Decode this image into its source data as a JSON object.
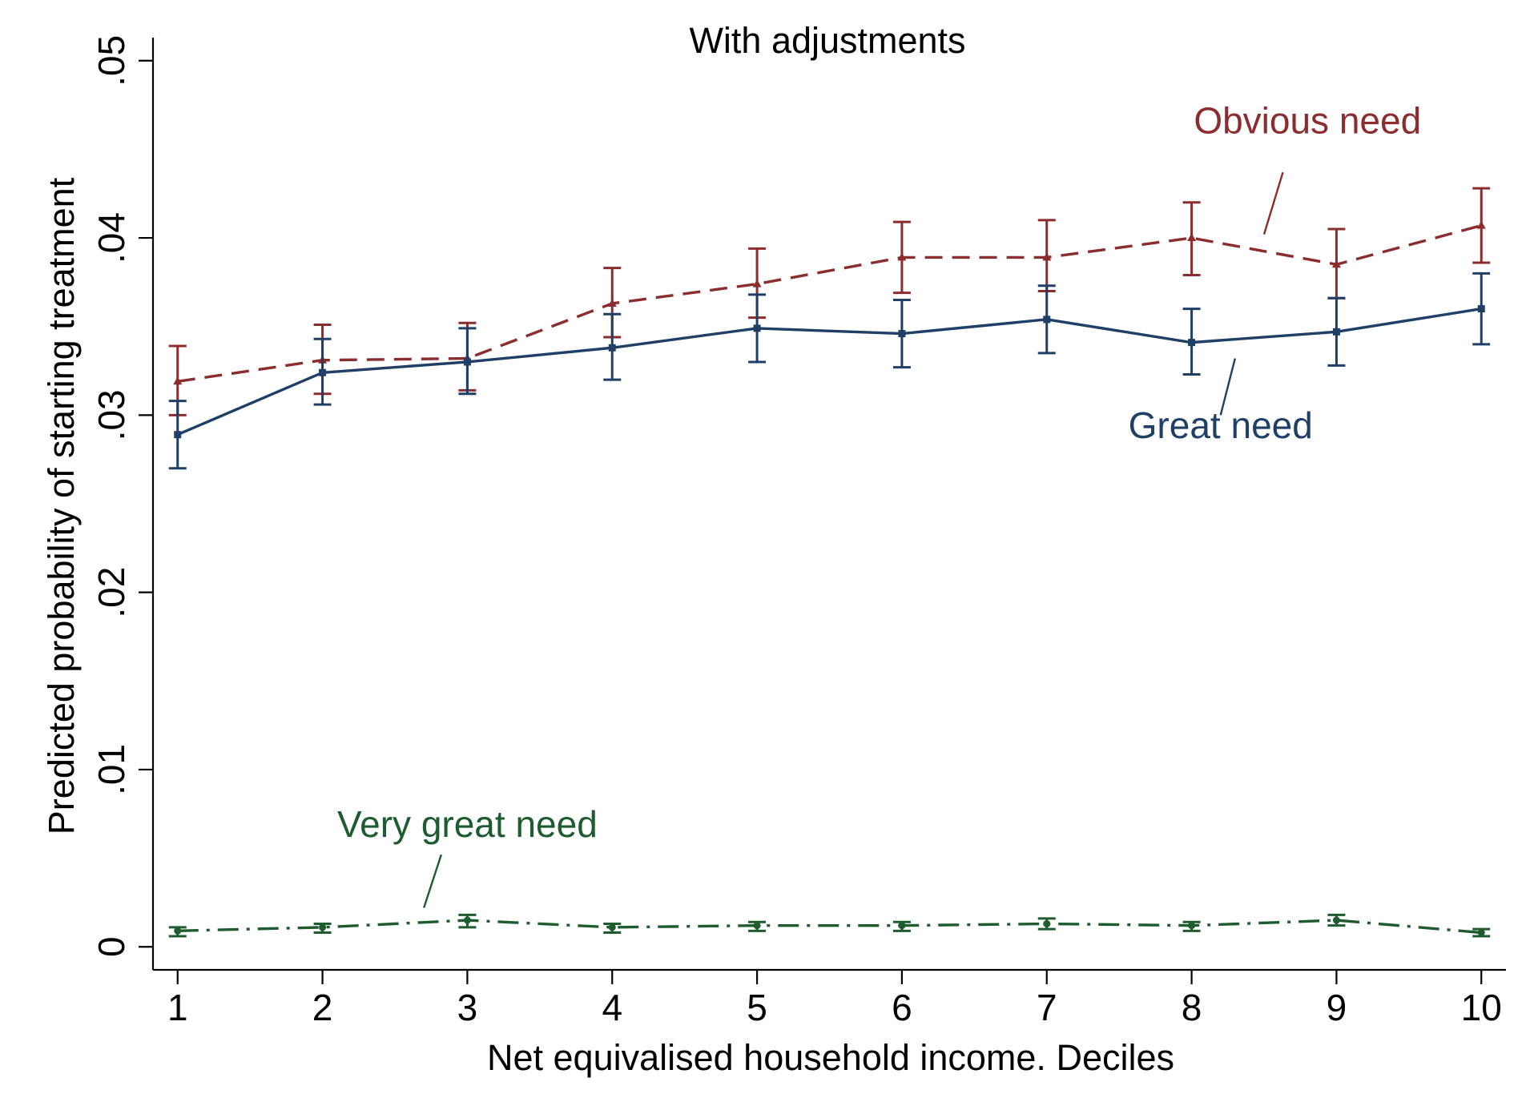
{
  "chart_data": {
    "type": "line",
    "title": "With adjustments",
    "xlabel": "Net equivalised household income. Deciles",
    "ylabel": "Predicted probability of starting treatment",
    "x": [
      1,
      2,
      3,
      4,
      5,
      6,
      7,
      8,
      9,
      10
    ],
    "xticks": [
      "1",
      "2",
      "3",
      "4",
      "5",
      "6",
      "7",
      "8",
      "9",
      "10"
    ],
    "yticks": [
      {
        "value": 0,
        "label": "0"
      },
      {
        "value": 0.01,
        "label": ".01"
      },
      {
        "value": 0.02,
        "label": ".02"
      },
      {
        "value": 0.03,
        "label": ".03"
      },
      {
        "value": 0.04,
        "label": ".04"
      },
      {
        "value": 0.05,
        "label": ".05"
      }
    ],
    "xlim": [
      0.83,
      10.17
    ],
    "ylim": [
      -0.0013,
      0.0513
    ],
    "grid": false,
    "legend": "none (series labelled directly on the plot)",
    "series": [
      {
        "name": "Obvious need",
        "color": "#8B2C2E",
        "line_style": "dashed",
        "marker": "triangle",
        "values": [
          0.0319,
          0.0331,
          0.0332,
          0.0363,
          0.0374,
          0.0389,
          0.0389,
          0.04,
          0.0385,
          0.0407
        ],
        "ci_low": [
          0.03,
          0.0312,
          0.0314,
          0.0344,
          0.0355,
          0.0369,
          0.037,
          0.0379,
          0.0366,
          0.0386
        ],
        "ci_high": [
          0.0339,
          0.0351,
          0.0352,
          0.0383,
          0.0394,
          0.0409,
          0.041,
          0.042,
          0.0405,
          0.0428
        ]
      },
      {
        "name": "Great need",
        "color": "#1F3F66",
        "line_style": "solid",
        "marker": "square",
        "values": [
          0.0289,
          0.0324,
          0.033,
          0.0338,
          0.0349,
          0.0346,
          0.0354,
          0.0341,
          0.0347,
          0.036
        ],
        "ci_low": [
          0.027,
          0.0306,
          0.0312,
          0.032,
          0.033,
          0.0327,
          0.0335,
          0.0323,
          0.0328,
          0.034
        ],
        "ci_high": [
          0.0308,
          0.0343,
          0.0349,
          0.0357,
          0.0368,
          0.0365,
          0.0373,
          0.036,
          0.0366,
          0.038
        ]
      },
      {
        "name": "Very great need",
        "color": "#1E5B2E",
        "line_style": "dash-dot",
        "marker": "circle",
        "values": [
          0.0009,
          0.0011,
          0.0015,
          0.0011,
          0.0012,
          0.0012,
          0.0013,
          0.0012,
          0.0015,
          0.0008
        ],
        "ci_low": [
          0.0006,
          0.0008,
          0.0011,
          0.0008,
          0.0009,
          0.0009,
          0.001,
          0.0009,
          0.0012,
          0.0006
        ],
        "ci_high": [
          0.0011,
          0.0013,
          0.0018,
          0.0013,
          0.0014,
          0.0014,
          0.0016,
          0.0014,
          0.0018,
          0.001
        ]
      }
    ],
    "annotations": [
      {
        "text": "Obvious need",
        "series": "Obvious need",
        "label_at": {
          "x": 8.8,
          "y": 0.0459
        },
        "pointer_from": {
          "x": 8.63,
          "y": 0.0437
        },
        "pointer_to": {
          "x": 8.5,
          "y": 0.0402
        }
      },
      {
        "text": "Great need",
        "series": "Great need",
        "label_at": {
          "x": 8.2,
          "y": 0.0287
        },
        "pointer_from": {
          "x": 8.3,
          "y": 0.0332
        },
        "pointer_to": {
          "x": 8.2,
          "y": 0.03
        }
      },
      {
        "text": "Very great need",
        "series": "Very great need",
        "label_at": {
          "x": 3.0,
          "y": 0.0062
        },
        "pointer_from": {
          "x": 2.82,
          "y": 0.0052
        },
        "pointer_to": {
          "x": 2.7,
          "y": 0.0022
        }
      }
    ]
  }
}
